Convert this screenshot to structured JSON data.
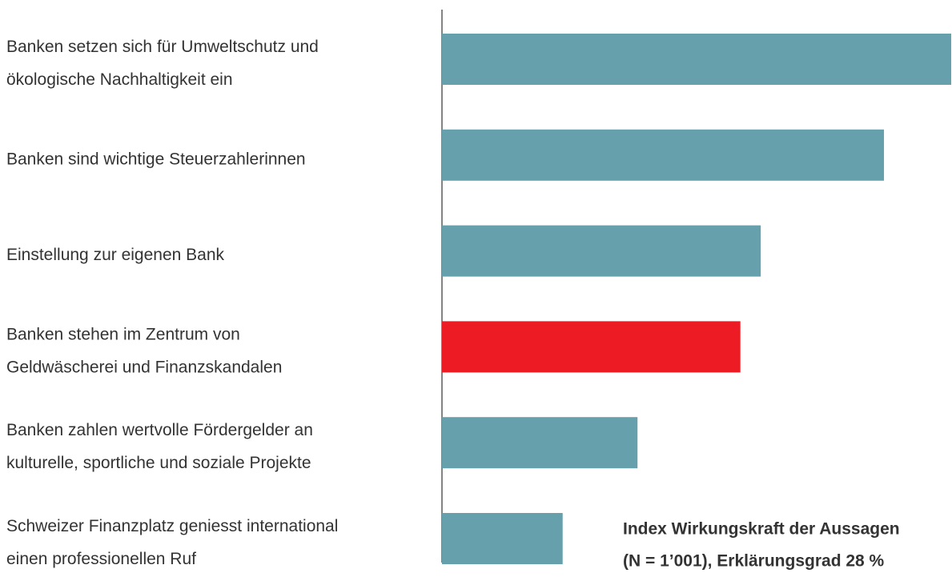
{
  "chart_data": {
    "type": "barh",
    "categories": [
      [
        "Banken setzen sich für Umweltschutz und",
        "ökologische Nachhaltigkeit ein"
      ],
      [
        "Banken sind wichtige Steuerzahlerinnen"
      ],
      [
        "Einstellung zur eigenen Bank"
      ],
      [
        "Banken stehen im Zentrum von",
        "Geldwäscherei und Finanzskandalen"
      ],
      [
        "Banken zahlen wertvolle Fördergelder an",
        "kulturelle, sportliche und soziale Projekte"
      ],
      [
        "Schweizer Finanzplatz geniesst international",
        "einen professionellen Ruf"
      ]
    ],
    "values": [
      100,
      86.8,
      62.6,
      58.6,
      38.4,
      23.7
    ],
    "colors": [
      "#66a0ad",
      "#66a0ad",
      "#66a0ad",
      "#ed1c24",
      "#66a0ad",
      "#66a0ad"
    ],
    "xlim": [
      0,
      100
    ],
    "annotation": [
      "Index Wirkungskraft der Aussagen",
      "(N = 1’001), Erklärungsgrad 28 %"
    ]
  }
}
